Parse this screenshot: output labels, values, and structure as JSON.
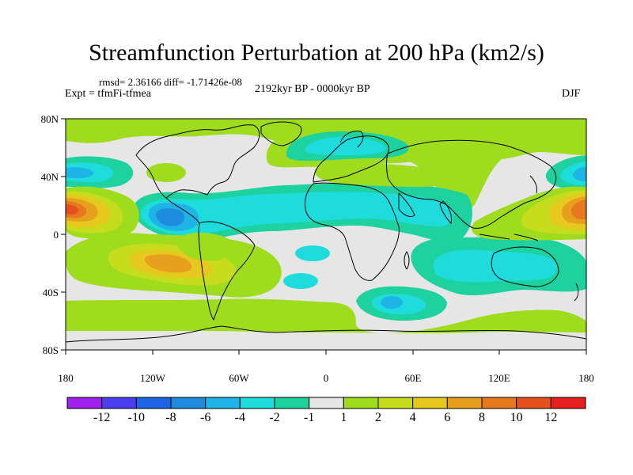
{
  "title": "Streamfunction Perturbation at 200 hPa (km2/s)",
  "stats": "rmsd= 2.36166 diff= -1.71426e-08",
  "experiment": "Expt = tfmFi-tfmea",
  "period": "2192kyr BP - 0000kyr BP",
  "season": "DJF",
  "lat_labels": [
    "80N",
    "40N",
    "0",
    "40S",
    "80S"
  ],
  "lon_labels": [
    "180",
    "120W",
    "60W",
    "0",
    "60E",
    "120E",
    "180"
  ],
  "colorbar": {
    "labels": [
      "-12",
      "-10",
      "-8",
      "-6",
      "-4",
      "-2",
      "-1",
      "1",
      "2",
      "4",
      "6",
      "8",
      "10",
      "12"
    ],
    "colors": [
      "#a020f0",
      "#4b3ef0",
      "#1e64e6",
      "#1e8cdc",
      "#1eb4e6",
      "#1edcdc",
      "#1ed2a0",
      "#e6e6e6",
      "#a0dc1e",
      "#c8dc1e",
      "#e6c81e",
      "#e6a01e",
      "#e6781e",
      "#e6501e",
      "#e61e1e"
    ]
  }
}
